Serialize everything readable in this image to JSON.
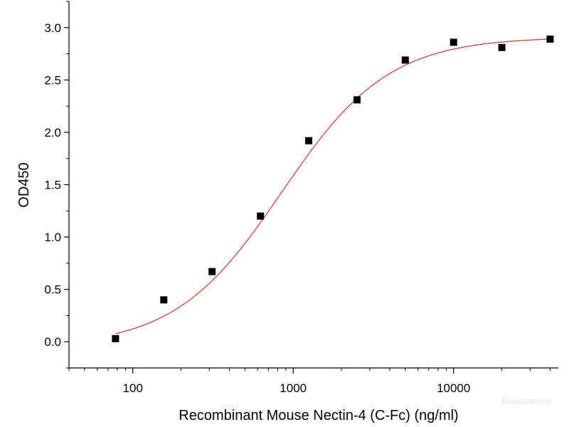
{
  "chart_data": {
    "type": "scatter",
    "title": "",
    "xlabel": "Recombinant Mouse Nectin-4 (C-Fc) (ng/ml)",
    "ylabel": "OD450",
    "xscale": "log",
    "xlim": [
      40,
      45000
    ],
    "ylim": [
      -0.25,
      3.25
    ],
    "x_ticks": [
      {
        "value": 100,
        "label": "100"
      },
      {
        "value": 1000,
        "label": "1000"
      },
      {
        "value": 10000,
        "label": "10000"
      }
    ],
    "y_ticks": [
      {
        "value": 0.0,
        "label": "0.0"
      },
      {
        "value": 0.5,
        "label": "0.5"
      },
      {
        "value": 1.0,
        "label": "1.0"
      },
      {
        "value": 1.5,
        "label": "1.5"
      },
      {
        "value": 2.0,
        "label": "2.0"
      },
      {
        "value": 2.5,
        "label": "2.5"
      },
      {
        "value": 3.0,
        "label": "3.0"
      }
    ],
    "grid": false,
    "legend": "none",
    "points": {
      "x": [
        78,
        156,
        312,
        625,
        1250,
        2500,
        5000,
        10000,
        20000,
        40000
      ],
      "y": [
        0.03,
        0.4,
        0.67,
        1.2,
        1.92,
        2.31,
        2.69,
        2.86,
        2.81,
        2.89
      ],
      "color": "#000000",
      "marker": "square"
    },
    "fit_curve": {
      "model": "4PL",
      "bottom": -0.05,
      "top": 2.91,
      "ec50": 850,
      "hill": 1.3,
      "x_range": [
        78,
        40000
      ],
      "color": "#d0453b"
    },
    "watermark": "Elabscience"
  }
}
